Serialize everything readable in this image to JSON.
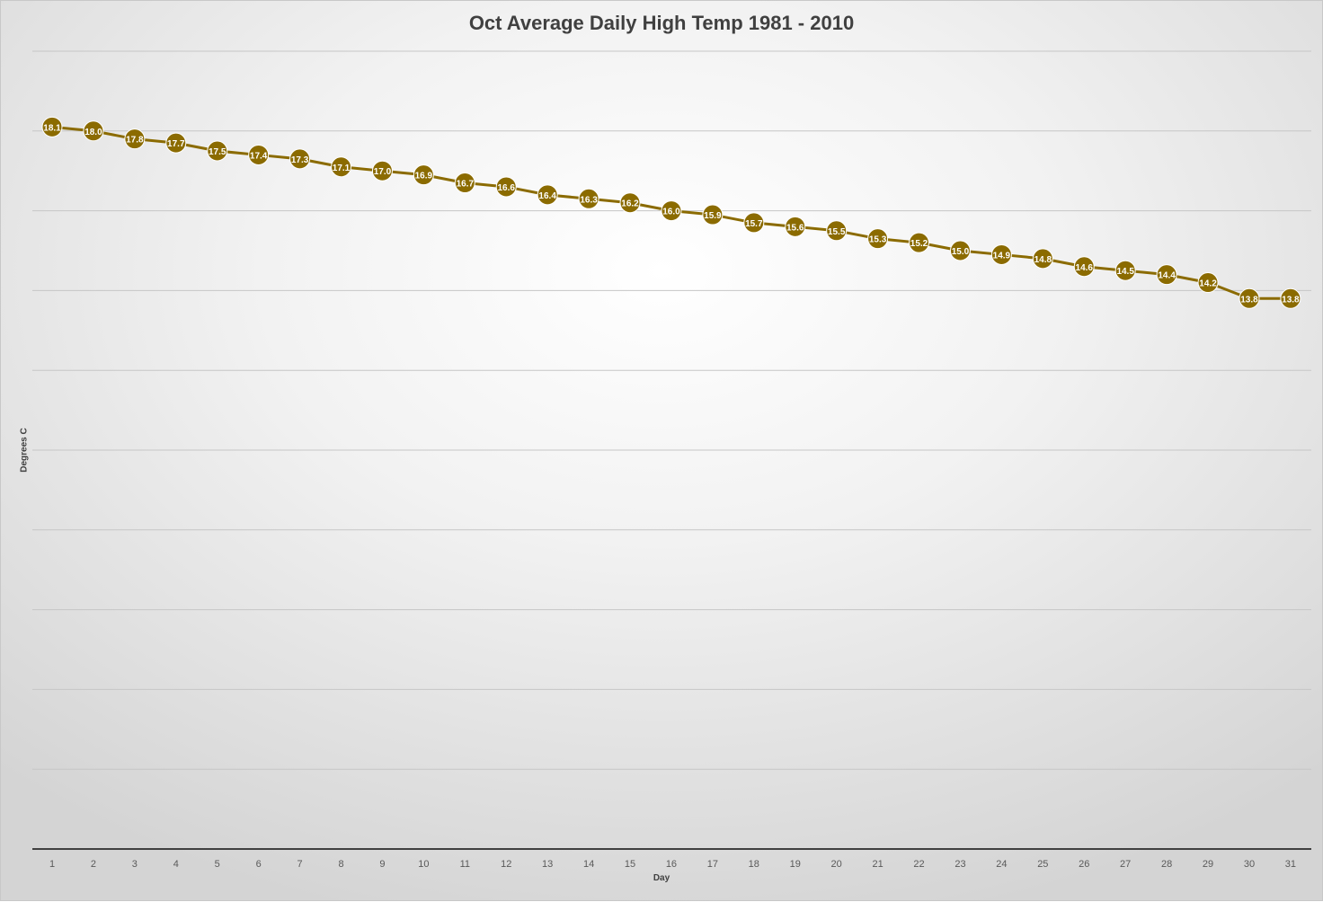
{
  "chart_data": {
    "type": "line",
    "title": "Oct Average Daily High Temp 1981 - 2010",
    "xlabel": "Day",
    "ylabel": "Degrees C",
    "ylim": [
      0,
      20
    ],
    "y_grid_step": 2,
    "grid": true,
    "legend": "none",
    "y_tick_labels_shown": false,
    "categories": [
      "1",
      "2",
      "3",
      "4",
      "5",
      "6",
      "7",
      "8",
      "9",
      "10",
      "11",
      "12",
      "13",
      "14",
      "15",
      "16",
      "17",
      "18",
      "19",
      "20",
      "21",
      "22",
      "23",
      "24",
      "25",
      "26",
      "27",
      "28",
      "29",
      "30",
      "31"
    ],
    "series": [
      {
        "values": [
          18.1,
          18.0,
          17.8,
          17.7,
          17.5,
          17.4,
          17.3,
          17.1,
          17.0,
          16.9,
          16.7,
          16.6,
          16.4,
          16.3,
          16.2,
          16.0,
          15.9,
          15.7,
          15.6,
          15.5,
          15.3,
          15.2,
          15.0,
          14.9,
          14.8,
          14.6,
          14.5,
          14.4,
          14.2,
          13.8,
          13.8
        ],
        "labels": [
          "18.1",
          "18.0",
          "17.8",
          "17.7",
          "17.5",
          "17.4",
          "17.3",
          "17.1",
          "17.0",
          "16.9",
          "16.7",
          "16.6",
          "16.4",
          "16.3",
          "16.2",
          "16.0",
          "15.9",
          "15.7",
          "15.6",
          "15.5",
          "15.3",
          "15.2",
          "15.0",
          "14.9",
          "14.8",
          "14.6",
          "14.5",
          "14.4",
          "14.2",
          "13.8",
          "13.8"
        ],
        "color": "#8B6B00"
      }
    ],
    "colors": {
      "gridline": "#c6c6c6",
      "axis": "#404040",
      "tick_text": "#595959",
      "data_label": "#ffffff"
    }
  }
}
